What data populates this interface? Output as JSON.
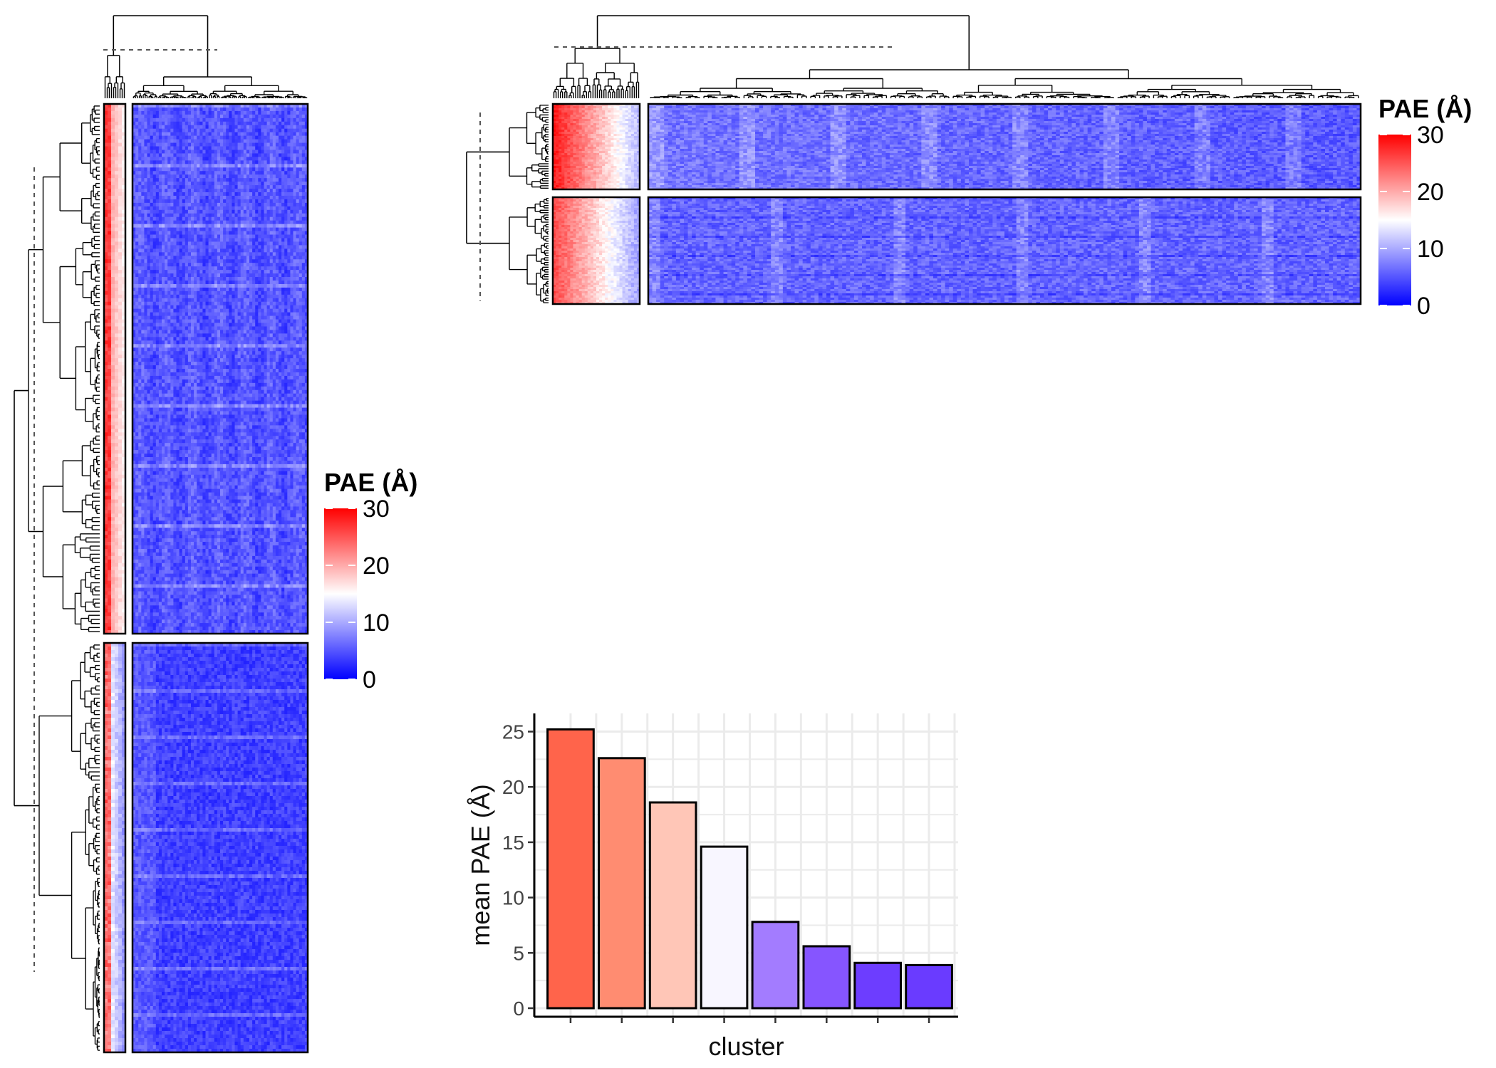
{
  "chart_data": [
    {
      "type": "heatmap",
      "panel": "left",
      "value_label": "PAE (Å)",
      "colorscale": {
        "low": "#0000ff",
        "mid": "#ffffff",
        "high": "#ff0000",
        "range": [
          0,
          30
        ],
        "midpoint": 15
      },
      "legend": {
        "title": "PAE (Å)",
        "ticks": [
          30,
          20,
          10,
          0
        ],
        "placement": "right"
      },
      "row_groups": 2,
      "column_groups": 2,
      "row_dendrogram": true,
      "column_dendrogram": true
    },
    {
      "type": "heatmap",
      "panel": "top-right",
      "value_label": "PAE (Å)",
      "colorscale": {
        "low": "#0000ff",
        "mid": "#ffffff",
        "high": "#ff0000",
        "range": [
          0,
          30
        ],
        "midpoint": 15
      },
      "legend": {
        "title": "PAE (Å)",
        "ticks": [
          30,
          20,
          10,
          0
        ],
        "placement": "right"
      },
      "row_groups": 2,
      "column_groups": 2,
      "row_dendrogram": true,
      "column_dendrogram": true
    },
    {
      "type": "bar",
      "panel": "bottom-center",
      "xlabel": "cluster",
      "ylabel": "mean PAE (Å)",
      "ylim": [
        0,
        26
      ],
      "yticks": [
        0,
        5,
        10,
        15,
        20,
        25
      ],
      "categories": [
        "",
        "",
        "",
        "",
        "",
        "",
        "",
        ""
      ],
      "values": [
        25.2,
        22.6,
        18.6,
        14.6,
        7.8,
        5.6,
        4.1,
        3.9
      ],
      "colors": [
        "#ff644b",
        "#ff8c71",
        "#ffc6b7",
        "#f8f6ff",
        "#a37cff",
        "#8655ff",
        "#6d3dff",
        "#6a3bff"
      ],
      "grid": true
    }
  ]
}
